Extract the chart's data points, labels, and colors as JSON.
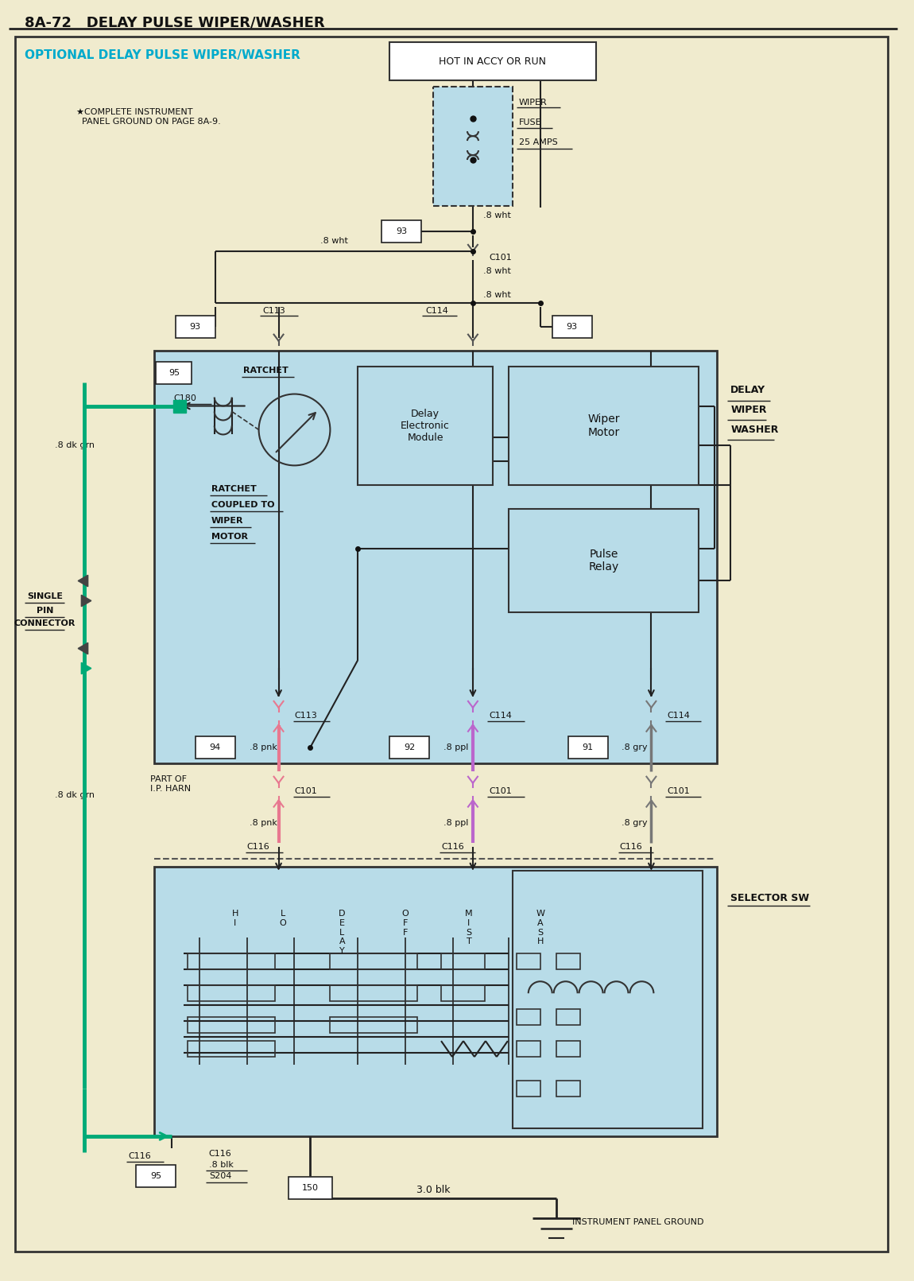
{
  "page_title": "8A-72   DELAY PULSE WIPER/WASHER",
  "diagram_title": "OPTIONAL DELAY PULSE WIPER/WASHER",
  "bg_color": "#f0ebce",
  "diagram_bg": "#b8dce8",
  "page_bg": "#f0ebce",
  "title_color": "#00aacc",
  "green_color": "#00aa77",
  "pink_color": "#e87890",
  "purple_color": "#bb66cc",
  "gray_color": "#777777",
  "note_star": "*COMPLETE INSTRUMENT\n PANEL GROUND ON PAGE 8A-9."
}
